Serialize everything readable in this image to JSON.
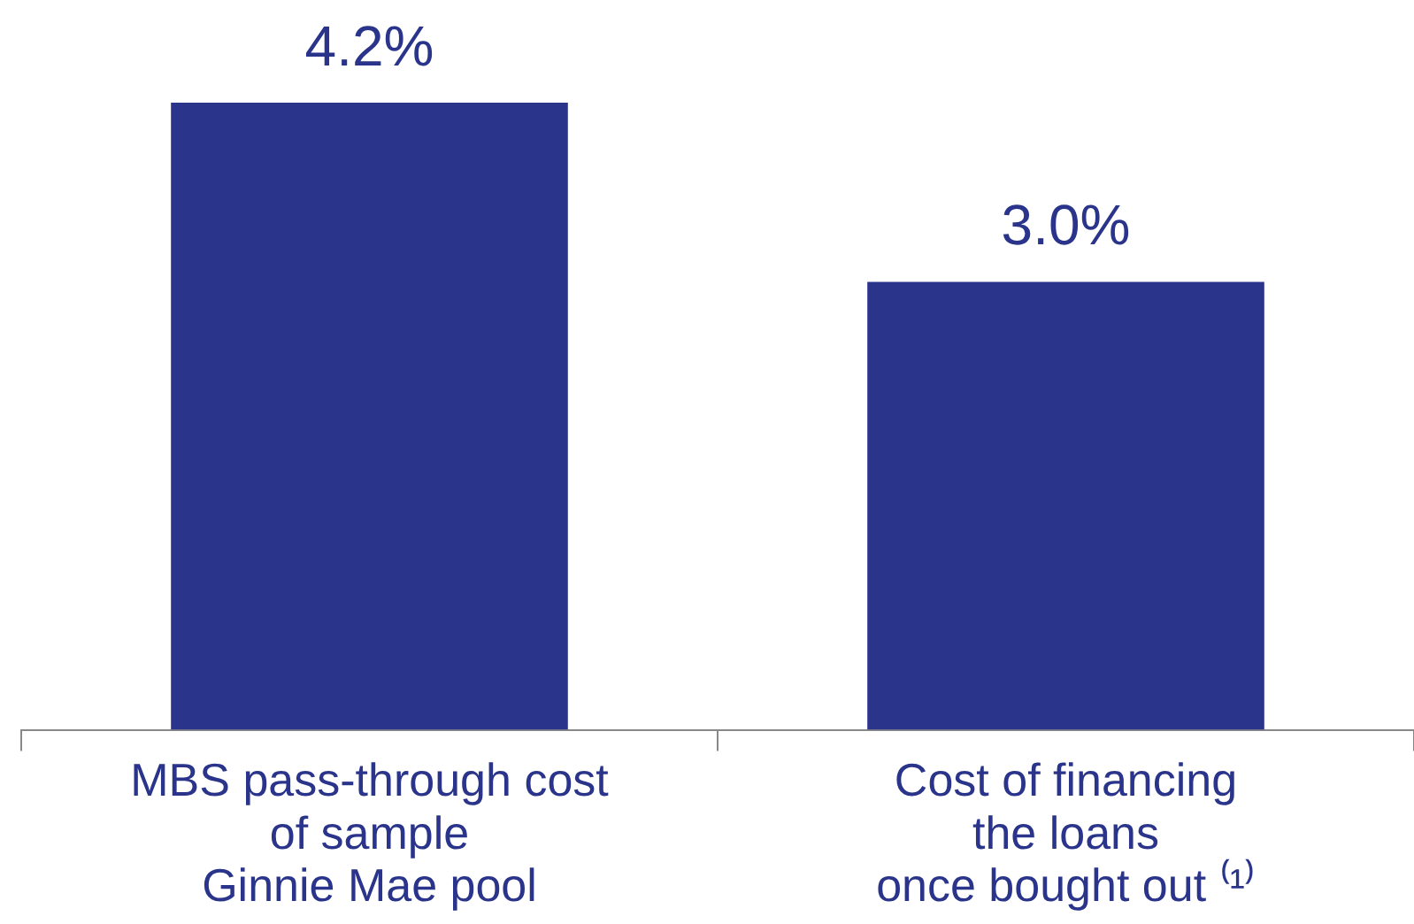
{
  "chart_data": {
    "type": "bar",
    "categories": [
      "MBS pass-through cost\nof sample\nGinnie Mae pool",
      "Cost of financing\nthe loans\nonce bought out ⁽¹⁾"
    ],
    "values": [
      4.2,
      3.0
    ],
    "value_labels": [
      "4.2%",
      "3.0%"
    ],
    "color": "#29348a",
    "grid": false,
    "legend": false
  }
}
